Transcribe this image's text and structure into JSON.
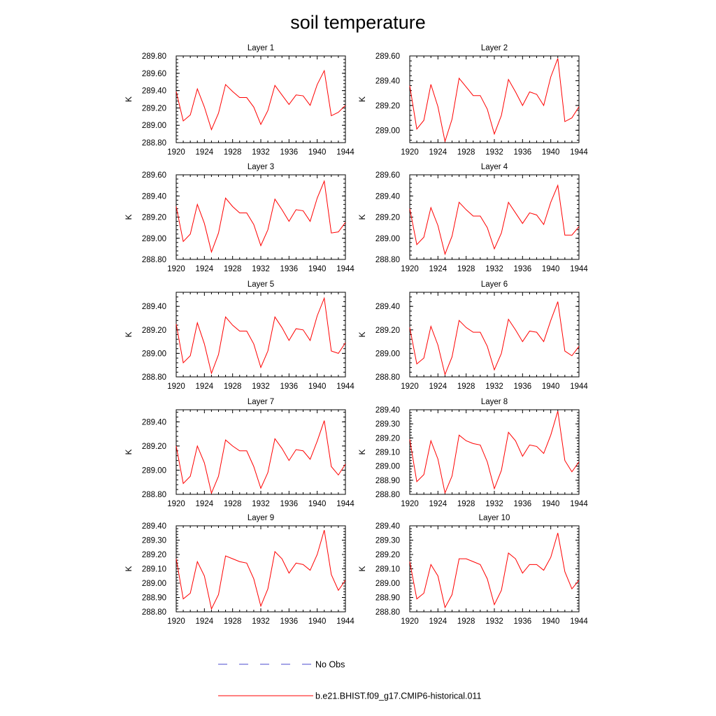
{
  "figure": {
    "title": "soil temperature",
    "legend": [
      {
        "label": "No Obs",
        "color": "#4a4acf",
        "dash": "dashed"
      },
      {
        "label": "b.e21.BHIST.f09_g17.CMIP6-historical.011",
        "color": "#ff0000",
        "dash": "solid"
      }
    ]
  },
  "chart_data": [
    {
      "type": "line",
      "title": "Layer 1",
      "xlabel": "",
      "ylabel": "K",
      "x": [
        1920,
        1921,
        1922,
        1923,
        1924,
        1925,
        1926,
        1927,
        1928,
        1929,
        1930,
        1931,
        1932,
        1933,
        1934,
        1935,
        1936,
        1937,
        1938,
        1939,
        1940,
        1941,
        1942,
        1943,
        1944
      ],
      "xticks": [
        1920,
        1924,
        1928,
        1932,
        1936,
        1940,
        1944
      ],
      "xlim": [
        1920,
        1944
      ],
      "ylim": [
        288.8,
        289.8
      ],
      "yticks": [
        "288.80",
        "289.00",
        "289.20",
        "289.40",
        "289.60",
        "289.80"
      ],
      "series": [
        {
          "color": "#ff0000",
          "values": [
            289.39,
            289.05,
            289.12,
            289.42,
            289.21,
            288.95,
            289.14,
            289.47,
            289.39,
            289.32,
            289.32,
            289.21,
            289.01,
            289.17,
            289.46,
            289.35,
            289.24,
            289.35,
            289.34,
            289.23,
            289.47,
            289.63,
            289.11,
            289.15,
            289.23
          ]
        }
      ]
    },
    {
      "type": "line",
      "title": "Layer 2",
      "xlabel": "",
      "ylabel": "K",
      "x": [
        1920,
        1921,
        1922,
        1923,
        1924,
        1925,
        1926,
        1927,
        1928,
        1929,
        1930,
        1931,
        1932,
        1933,
        1934,
        1935,
        1936,
        1937,
        1938,
        1939,
        1940,
        1941,
        1942,
        1943,
        1944
      ],
      "xticks": [
        1920,
        1924,
        1928,
        1932,
        1936,
        1940,
        1944
      ],
      "xlim": [
        1920,
        1944
      ],
      "ylim": [
        288.9,
        289.6
      ],
      "yticks": [
        "289.00",
        "289.20",
        "289.40",
        "289.60"
      ],
      "series": [
        {
          "color": "#ff0000",
          "values": [
            289.36,
            289.01,
            289.08,
            289.37,
            289.19,
            288.91,
            289.09,
            289.42,
            289.35,
            289.28,
            289.28,
            289.17,
            288.97,
            289.12,
            289.41,
            289.31,
            289.2,
            289.31,
            289.29,
            289.2,
            289.43,
            289.58,
            289.07,
            289.1,
            289.19
          ]
        }
      ]
    },
    {
      "type": "line",
      "title": "Layer 3",
      "xlabel": "",
      "ylabel": "K",
      "x": [
        1920,
        1921,
        1922,
        1923,
        1924,
        1925,
        1926,
        1927,
        1928,
        1929,
        1930,
        1931,
        1932,
        1933,
        1934,
        1935,
        1936,
        1937,
        1938,
        1939,
        1940,
        1941,
        1942,
        1943,
        1944
      ],
      "xticks": [
        1920,
        1924,
        1928,
        1932,
        1936,
        1940,
        1944
      ],
      "xlim": [
        1920,
        1944
      ],
      "ylim": [
        288.8,
        289.6
      ],
      "yticks": [
        "288.80",
        "289.00",
        "289.20",
        "289.40",
        "289.60"
      ],
      "series": [
        {
          "color": "#ff0000",
          "values": [
            289.3,
            288.97,
            289.04,
            289.32,
            289.14,
            288.87,
            289.05,
            289.38,
            289.3,
            289.24,
            289.24,
            289.13,
            288.93,
            289.08,
            289.37,
            289.27,
            289.16,
            289.27,
            289.26,
            289.16,
            289.38,
            289.54,
            289.05,
            289.06,
            289.15
          ]
        }
      ]
    },
    {
      "type": "line",
      "title": "Layer 4",
      "xlabel": "",
      "ylabel": "K",
      "x": [
        1920,
        1921,
        1922,
        1923,
        1924,
        1925,
        1926,
        1927,
        1928,
        1929,
        1930,
        1931,
        1932,
        1933,
        1934,
        1935,
        1936,
        1937,
        1938,
        1939,
        1940,
        1941,
        1942,
        1943,
        1944
      ],
      "xticks": [
        1920,
        1924,
        1928,
        1932,
        1936,
        1940,
        1944
      ],
      "xlim": [
        1920,
        1944
      ],
      "ylim": [
        288.8,
        289.6
      ],
      "yticks": [
        "288.80",
        "289.00",
        "289.20",
        "289.40",
        "289.60"
      ],
      "series": [
        {
          "color": "#ff0000",
          "values": [
            289.28,
            288.94,
            289.01,
            289.29,
            289.12,
            288.85,
            289.02,
            289.34,
            289.27,
            289.21,
            289.21,
            289.1,
            288.9,
            289.05,
            289.34,
            289.24,
            289.14,
            289.24,
            289.22,
            289.13,
            289.34,
            289.5,
            289.03,
            289.03,
            289.11
          ]
        }
      ]
    },
    {
      "type": "line",
      "title": "Layer 5",
      "xlabel": "",
      "ylabel": "K",
      "x": [
        1920,
        1921,
        1922,
        1923,
        1924,
        1925,
        1926,
        1927,
        1928,
        1929,
        1930,
        1931,
        1932,
        1933,
        1934,
        1935,
        1936,
        1937,
        1938,
        1939,
        1940,
        1941,
        1942,
        1943,
        1944
      ],
      "xticks": [
        1920,
        1924,
        1928,
        1932,
        1936,
        1940,
        1944
      ],
      "xlim": [
        1920,
        1944
      ],
      "ylim": [
        288.8,
        289.52
      ],
      "yticks": [
        "288.80",
        "289.00",
        "289.20",
        "289.40"
      ],
      "series": [
        {
          "color": "#ff0000",
          "values": [
            289.25,
            288.92,
            288.98,
            289.26,
            289.08,
            288.83,
            288.99,
            289.31,
            289.24,
            289.19,
            289.19,
            289.08,
            288.88,
            289.02,
            289.31,
            289.22,
            289.11,
            289.21,
            289.2,
            289.11,
            289.32,
            289.47,
            289.02,
            289.0,
            289.09
          ]
        }
      ]
    },
    {
      "type": "line",
      "title": "Layer 6",
      "xlabel": "",
      "ylabel": "K",
      "x": [
        1920,
        1921,
        1922,
        1923,
        1924,
        1925,
        1926,
        1927,
        1928,
        1929,
        1930,
        1931,
        1932,
        1933,
        1934,
        1935,
        1936,
        1937,
        1938,
        1939,
        1940,
        1941,
        1942,
        1943,
        1944
      ],
      "xticks": [
        1920,
        1924,
        1928,
        1932,
        1936,
        1940,
        1944
      ],
      "xlim": [
        1920,
        1944
      ],
      "ylim": [
        288.8,
        289.52
      ],
      "yticks": [
        "288.80",
        "289.00",
        "289.20",
        "289.40"
      ],
      "series": [
        {
          "color": "#ff0000",
          "values": [
            289.22,
            288.91,
            288.96,
            289.23,
            289.07,
            288.82,
            288.97,
            289.28,
            289.22,
            289.18,
            289.18,
            289.06,
            288.86,
            289.0,
            289.29,
            289.2,
            289.1,
            289.19,
            289.18,
            289.1,
            289.28,
            289.44,
            289.02,
            288.98,
            289.06
          ]
        }
      ]
    },
    {
      "type": "line",
      "title": "Layer 7",
      "xlabel": "",
      "ylabel": "K",
      "x": [
        1920,
        1921,
        1922,
        1923,
        1924,
        1925,
        1926,
        1927,
        1928,
        1929,
        1930,
        1931,
        1932,
        1933,
        1934,
        1935,
        1936,
        1937,
        1938,
        1939,
        1940,
        1941,
        1942,
        1943,
        1944
      ],
      "xticks": [
        1920,
        1924,
        1928,
        1932,
        1936,
        1940,
        1944
      ],
      "xlim": [
        1920,
        1944
      ],
      "ylim": [
        288.8,
        289.5
      ],
      "yticks": [
        "288.80",
        "289.00",
        "289.20",
        "289.40"
      ],
      "series": [
        {
          "color": "#ff0000",
          "values": [
            289.2,
            288.89,
            288.95,
            289.2,
            289.06,
            288.81,
            288.95,
            289.25,
            289.2,
            289.16,
            289.16,
            289.03,
            288.85,
            288.98,
            289.26,
            289.18,
            289.08,
            289.17,
            289.16,
            289.09,
            289.24,
            289.41,
            289.03,
            288.96,
            289.05
          ]
        }
      ]
    },
    {
      "type": "line",
      "title": "Layer 8",
      "xlabel": "",
      "ylabel": "K",
      "x": [
        1920,
        1921,
        1922,
        1923,
        1924,
        1925,
        1926,
        1927,
        1928,
        1929,
        1930,
        1931,
        1932,
        1933,
        1934,
        1935,
        1936,
        1937,
        1938,
        1939,
        1940,
        1941,
        1942,
        1943,
        1944
      ],
      "xticks": [
        1920,
        1924,
        1928,
        1932,
        1936,
        1940,
        1944
      ],
      "xlim": [
        1920,
        1944
      ],
      "ylim": [
        288.8,
        289.4
      ],
      "yticks": [
        "288.80",
        "288.90",
        "289.00",
        "289.10",
        "289.20",
        "289.30",
        "289.40"
      ],
      "series": [
        {
          "color": "#ff0000",
          "values": [
            289.19,
            288.89,
            288.94,
            289.18,
            289.05,
            288.81,
            288.93,
            289.22,
            289.18,
            289.16,
            289.15,
            289.03,
            288.84,
            288.97,
            289.24,
            289.18,
            289.07,
            289.15,
            289.14,
            289.09,
            289.22,
            289.39,
            289.04,
            288.96,
            289.03
          ]
        }
      ]
    },
    {
      "type": "line",
      "title": "Layer 9",
      "xlabel": "",
      "ylabel": "K",
      "x": [
        1920,
        1921,
        1922,
        1923,
        1924,
        1925,
        1926,
        1927,
        1928,
        1929,
        1930,
        1931,
        1932,
        1933,
        1934,
        1935,
        1936,
        1937,
        1938,
        1939,
        1940,
        1941,
        1942,
        1943,
        1944
      ],
      "xticks": [
        1920,
        1924,
        1928,
        1932,
        1936,
        1940,
        1944
      ],
      "xlim": [
        1920,
        1944
      ],
      "ylim": [
        288.8,
        289.4
      ],
      "yticks": [
        "288.80",
        "288.90",
        "289.00",
        "289.10",
        "289.20",
        "289.30",
        "289.40"
      ],
      "series": [
        {
          "color": "#ff0000",
          "values": [
            289.17,
            288.89,
            288.93,
            289.15,
            289.05,
            288.82,
            288.92,
            289.19,
            289.17,
            289.15,
            289.14,
            289.03,
            288.84,
            288.96,
            289.22,
            289.17,
            289.07,
            289.14,
            289.13,
            289.09,
            289.2,
            289.37,
            289.06,
            288.95,
            289.02
          ]
        }
      ]
    },
    {
      "type": "line",
      "title": "Layer 10",
      "xlabel": "",
      "ylabel": "K",
      "x": [
        1920,
        1921,
        1922,
        1923,
        1924,
        1925,
        1926,
        1927,
        1928,
        1929,
        1930,
        1931,
        1932,
        1933,
        1934,
        1935,
        1936,
        1937,
        1938,
        1939,
        1940,
        1941,
        1942,
        1943,
        1944
      ],
      "xticks": [
        1920,
        1924,
        1928,
        1932,
        1936,
        1940,
        1944
      ],
      "xlim": [
        1920,
        1944
      ],
      "ylim": [
        288.8,
        289.4
      ],
      "yticks": [
        "288.80",
        "288.90",
        "289.00",
        "289.10",
        "289.20",
        "289.30",
        "289.40"
      ],
      "series": [
        {
          "color": "#ff0000",
          "values": [
            289.15,
            288.89,
            288.93,
            289.13,
            289.05,
            288.83,
            288.92,
            289.17,
            289.17,
            289.15,
            289.13,
            289.03,
            288.85,
            288.95,
            289.21,
            289.17,
            289.07,
            289.13,
            289.13,
            289.09,
            289.18,
            289.35,
            289.08,
            288.96,
            289.02
          ]
        }
      ]
    }
  ]
}
